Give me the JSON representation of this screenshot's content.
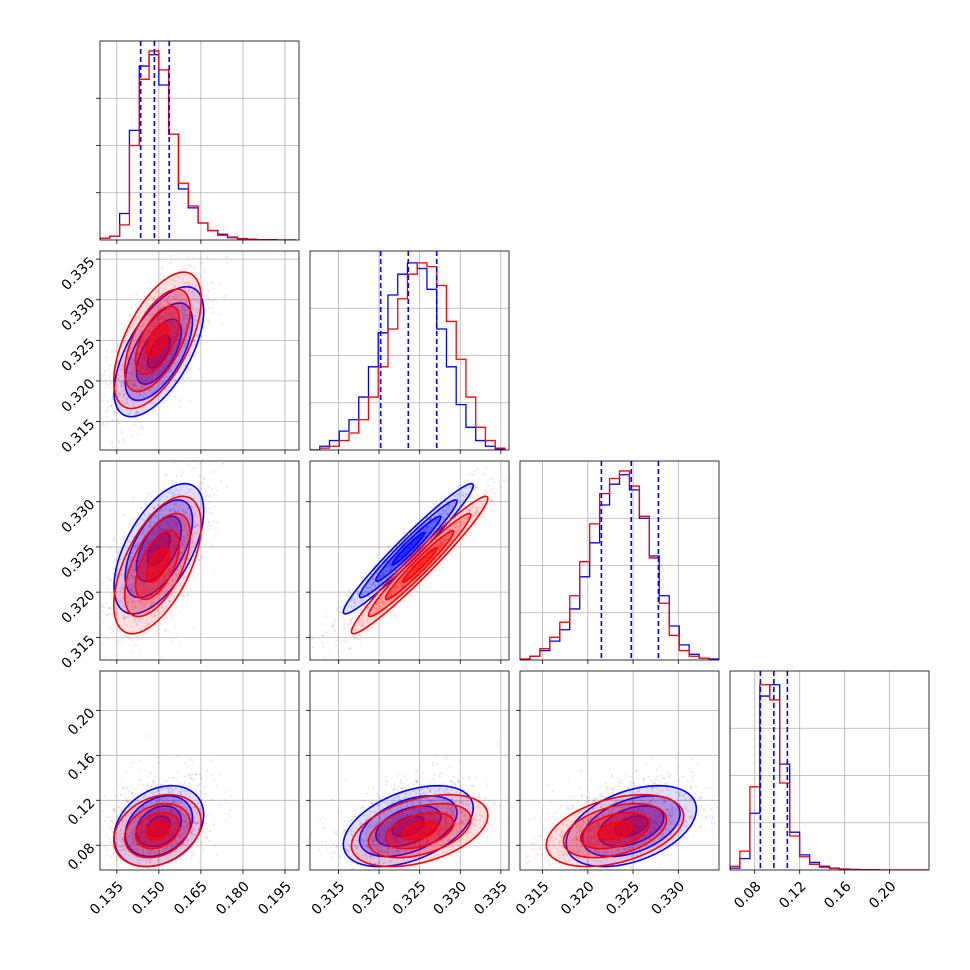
{
  "chart_data": {
    "type": "corner",
    "grid": true,
    "series": [
      {
        "name": "",
        "color": "#0000ff"
      },
      {
        "name": "",
        "color": "#ff0000"
      }
    ],
    "variables": [
      {
        "range": [
          0.129,
          0.2
        ],
        "ticks": [
          0.135,
          0.15,
          0.165,
          0.18,
          0.195
        ],
        "tick_labels": [
          "0.135",
          "0.150",
          "0.165",
          "0.180",
          "0.195"
        ],
        "quantiles": [
          0.1435,
          0.1484,
          0.1537
        ]
      },
      {
        "range": [
          0.3115,
          0.336
        ],
        "ticks": [
          0.315,
          0.32,
          0.325,
          0.33,
          0.335
        ],
        "tick_labels": [
          "0.315",
          "0.320",
          "0.325",
          "0.330",
          "0.335"
        ],
        "quantiles": [
          0.3202,
          0.3236,
          0.3271
        ]
      },
      {
        "range": [
          0.3125,
          0.3345
        ],
        "ticks": [
          0.315,
          0.32,
          0.325,
          0.33
        ],
        "tick_labels": [
          "0.315",
          "0.320",
          "0.325",
          "0.330"
        ],
        "quantiles": [
          0.3215,
          0.3248,
          0.3278
        ]
      },
      {
        "range": [
          0.058,
          0.235
        ],
        "ticks": [
          0.08,
          0.12,
          0.16,
          0.2
        ],
        "tick_labels": [
          "0.08",
          "0.12",
          "0.16",
          "0.20"
        ],
        "quantiles": [
          0.085,
          0.097,
          0.109
        ]
      }
    ],
    "histograms": [
      {
        "bins_edges": [
          0.129,
          0.1325,
          0.136,
          0.1395,
          0.143,
          0.1465,
          0.15,
          0.1535,
          0.157,
          0.1605,
          0.164,
          0.1675,
          0.171,
          0.1745,
          0.178,
          0.1815,
          0.185,
          0.1885,
          0.192,
          0.1955,
          0.199
        ],
        "blue": [
          0.01,
          0.02,
          0.14,
          0.58,
          0.92,
          0.98,
          0.82,
          0.56,
          0.27,
          0.17,
          0.09,
          0.05,
          0.03,
          0.015,
          0.008,
          0.004,
          0.002,
          0.001,
          0.0,
          0.0
        ],
        "red": [
          0.01,
          0.02,
          0.08,
          0.5,
          0.85,
          1.0,
          0.9,
          0.56,
          0.3,
          0.18,
          0.09,
          0.05,
          0.025,
          0.012,
          0.006,
          0.003,
          0.002,
          0.001,
          0.0,
          0.0
        ]
      },
      {
        "bins_edges": [
          0.3115,
          0.3127,
          0.3139,
          0.3151,
          0.3163,
          0.3175,
          0.3187,
          0.3199,
          0.3211,
          0.3223,
          0.3235,
          0.3247,
          0.3259,
          0.3271,
          0.3283,
          0.3295,
          0.3307,
          0.3319,
          0.3331,
          0.3343,
          0.3355
        ],
        "blue": [
          0.0,
          0.02,
          0.05,
          0.1,
          0.16,
          0.28,
          0.44,
          0.62,
          0.82,
          0.93,
          0.99,
          0.96,
          0.85,
          0.64,
          0.44,
          0.24,
          0.12,
          0.05,
          0.02,
          0.005
        ],
        "red": [
          0.0,
          0.01,
          0.02,
          0.05,
          0.09,
          0.16,
          0.28,
          0.44,
          0.64,
          0.8,
          0.93,
          0.99,
          0.97,
          0.87,
          0.68,
          0.48,
          0.28,
          0.12,
          0.05,
          0.01
        ]
      },
      {
        "bins_edges": [
          0.3125,
          0.3136,
          0.3147,
          0.3158,
          0.3169,
          0.318,
          0.3191,
          0.3202,
          0.3213,
          0.3224,
          0.3235,
          0.3246,
          0.3257,
          0.3268,
          0.3279,
          0.329,
          0.3301,
          0.3312,
          0.3323,
          0.3334,
          0.3345
        ],
        "blue": [
          0.0,
          0.02,
          0.05,
          0.1,
          0.16,
          0.27,
          0.44,
          0.62,
          0.82,
          0.93,
          0.98,
          0.9,
          0.75,
          0.55,
          0.34,
          0.18,
          0.08,
          0.03,
          0.01,
          0.005
        ],
        "red": [
          0.005,
          0.02,
          0.06,
          0.12,
          0.2,
          0.34,
          0.52,
          0.72,
          0.88,
          0.96,
          1.0,
          0.92,
          0.76,
          0.54,
          0.3,
          0.13,
          0.05,
          0.02,
          0.01,
          0.0
        ]
      },
      {
        "bins_edges": [
          0.058,
          0.0668,
          0.0757,
          0.0845,
          0.0934,
          0.1022,
          0.1111,
          0.1199,
          0.1288,
          0.1376,
          0.1465,
          0.1553,
          0.1642,
          0.173,
          0.1819,
          0.1907,
          0.1996,
          0.2084,
          0.2173,
          0.2261,
          0.235
        ],
        "blue": [
          0.01,
          0.06,
          0.3,
          0.92,
          0.98,
          0.56,
          0.2,
          0.08,
          0.04,
          0.02,
          0.01,
          0.005,
          0.003,
          0.002,
          0.001,
          0.0,
          0.0,
          0.0,
          0.0,
          0.0
        ],
        "red": [
          0.02,
          0.1,
          0.44,
          0.98,
          0.9,
          0.46,
          0.18,
          0.07,
          0.03,
          0.015,
          0.008,
          0.004,
          0.002,
          0.001,
          0.0,
          0.0,
          0.0,
          0.0,
          0.0,
          0.0
        ]
      }
    ],
    "joint": {
      "blue": {
        "means": [
          0.15,
          0.3236,
          0.3248,
          0.097
        ],
        "stds": [
          0.008,
          0.004,
          0.0036,
          0.018
        ],
        "rho_1_0": 0.62,
        "rho_2_0": 0.58,
        "rho_2_1": 0.97,
        "rho_3_0": 0.28,
        "rho_3_1": 0.45,
        "rho_3_2": 0.42
      },
      "red": {
        "means": [
          0.1495,
          0.325,
          0.323,
          0.093
        ],
        "stds": [
          0.0078,
          0.0042,
          0.0038,
          0.016
        ],
        "rho_1_0": 0.6,
        "rho_2_0": 0.58,
        "rho_2_1": 0.97,
        "rho_3_0": 0.26,
        "rho_3_1": 0.42,
        "rho_3_2": 0.4
      },
      "contour_levels_sigma": [
        0.5,
        1.0,
        1.5,
        2.0
      ]
    }
  }
}
